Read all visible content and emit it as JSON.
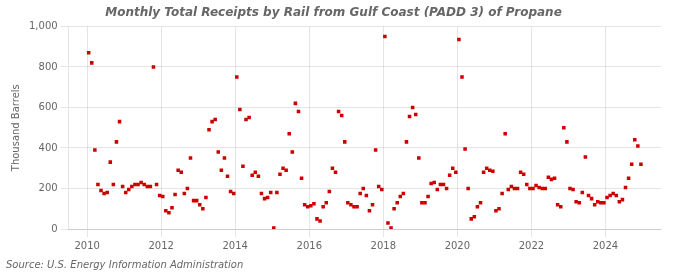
{
  "chart_data": {
    "type": "scatter",
    "title": "Monthly Total Receipts by Rail from Gulf Coast (PADD 3) of Propane",
    "ylabel": "Thousand Barrels",
    "annotations": [
      "Source: U.S. Energy Information Administration"
    ],
    "color": "#cc0000",
    "marker": "square",
    "grid": true,
    "xlim": [
      2009.5,
      2025.5
    ],
    "xticks": [
      2010,
      2012,
      2014,
      2016,
      2018,
      2020,
      2022,
      2024
    ],
    "ylim": [
      0,
      1000
    ],
    "yticks": [
      0,
      200,
      400,
      600,
      800,
      {
        "value": 1000,
        "label": "1,000"
      }
    ],
    "x": [
      2010.0416666666667,
      2010.125,
      2010.2083333333333,
      2010.2916666666667,
      2010.375,
      2010.4583333333333,
      2010.5416666666667,
      2010.625,
      2010.7083333333333,
      2010.7916666666667,
      2010.875,
      2010.9583333333333,
      2011.0416666666667,
      2011.125,
      2011.2083333333333,
      2011.2916666666667,
      2011.375,
      2011.4583333333333,
      2011.5416666666667,
      2011.625,
      2011.7083333333333,
      2011.7916666666667,
      2011.875,
      2011.9583333333333,
      2012.0416666666667,
      2012.125,
      2012.2083333333333,
      2012.2916666666667,
      2012.375,
      2012.4583333333333,
      2012.5416666666667,
      2012.625,
      2012.7083333333333,
      2012.7916666666667,
      2012.875,
      2012.9583333333333,
      2013.0416666666667,
      2013.125,
      2013.2083333333333,
      2013.2916666666667,
      2013.375,
      2013.4583333333333,
      2013.5416666666667,
      2013.625,
      2013.7083333333333,
      2013.7916666666667,
      2013.875,
      2013.9583333333333,
      2014.0416666666667,
      2014.125,
      2014.2083333333333,
      2014.2916666666667,
      2014.375,
      2014.4583333333333,
      2014.5416666666667,
      2014.625,
      2014.7083333333333,
      2014.7916666666667,
      2014.875,
      2014.9583333333333,
      2015.0416666666667,
      2015.125,
      2015.2083333333333,
      2015.2916666666667,
      2015.375,
      2015.4583333333333,
      2015.5416666666667,
      2015.625,
      2015.7083333333333,
      2015.7916666666667,
      2015.875,
      2015.9583333333333,
      2016.0416666666667,
      2016.125,
      2016.2083333333333,
      2016.2916666666667,
      2016.375,
      2016.4583333333333,
      2016.5416666666667,
      2016.625,
      2016.7083333333333,
      2016.7916666666667,
      2016.875,
      2016.9583333333333,
      2017.0416666666667,
      2017.125,
      2017.2083333333333,
      2017.2916666666667,
      2017.375,
      2017.4583333333333,
      2017.5416666666667,
      2017.625,
      2017.7083333333333,
      2017.7916666666667,
      2017.875,
      2017.9583333333333,
      2018.0416666666667,
      2018.125,
      2018.2083333333333,
      2018.2916666666667,
      2018.375,
      2018.4583333333333,
      2018.5416666666667,
      2018.625,
      2018.7083333333333,
      2018.7916666666667,
      2018.875,
      2018.9583333333333,
      2019.0416666666667,
      2019.125,
      2019.2083333333333,
      2019.2916666666667,
      2019.375,
      2019.4583333333333,
      2019.5416666666667,
      2019.625,
      2019.7083333333333,
      2019.7916666666667,
      2019.875,
      2019.9583333333333,
      2020.0416666666667,
      2020.125,
      2020.2083333333333,
      2020.2916666666667,
      2020.375,
      2020.4583333333333,
      2020.5416666666667,
      2020.625,
      2020.7083333333333,
      2020.7916666666667,
      2020.875,
      2020.9583333333333,
      2021.0416666666667,
      2021.125,
      2021.2083333333333,
      2021.2916666666667,
      2021.375,
      2021.4583333333333,
      2021.5416666666667,
      2021.625,
      2021.7083333333333,
      2021.7916666666667,
      2021.875,
      2021.9583333333333,
      2022.0416666666667,
      2022.125,
      2022.2083333333333,
      2022.2916666666667,
      2022.375,
      2022.4583333333333,
      2022.5416666666667,
      2022.625,
      2022.7083333333333,
      2022.7916666666667,
      2022.875,
      2022.9583333333333,
      2023.0416666666667,
      2023.125,
      2023.2083333333333,
      2023.2916666666667,
      2023.375,
      2023.4583333333333,
      2023.5416666666667,
      2023.625,
      2023.7083333333333,
      2023.7916666666667,
      2023.875,
      2023.9583333333333,
      2024.0416666666667,
      2024.125,
      2024.2083333333333,
      2024.2916666666667,
      2024.375,
      2024.4583333333333,
      2024.5416666666667,
      2024.625,
      2024.7083333333333,
      2024.7916666666667,
      2024.875,
      2024.9583333333333
    ],
    "values": [
      870,
      820,
      390,
      220,
      190,
      175,
      180,
      330,
      220,
      430,
      530,
      210,
      180,
      195,
      210,
      220,
      220,
      230,
      220,
      210,
      210,
      800,
      220,
      165,
      160,
      90,
      80,
      105,
      170,
      290,
      280,
      175,
      200,
      350,
      140,
      140,
      120,
      100,
      155,
      490,
      530,
      540,
      380,
      290,
      350,
      260,
      185,
      175,
      750,
      590,
      310,
      540,
      550,
      265,
      280,
      260,
      175,
      150,
      155,
      180,
      5,
      180,
      270,
      300,
      290,
      470,
      380,
      620,
      580,
      250,
      120,
      110,
      115,
      125,
      50,
      40,
      110,
      130,
      185,
      300,
      280,
      580,
      560,
      430,
      130,
      120,
      110,
      110,
      175,
      200,
      165,
      90,
      120,
      390,
      210,
      195,
      950,
      30,
      5,
      100,
      130,
      160,
      175,
      430,
      555,
      600,
      565,
      350,
      130,
      130,
      160,
      225,
      230,
      195,
      220,
      220,
      200,
      265,
      300,
      280,
      935,
      750,
      395,
      200,
      50,
      60,
      110,
      130,
      280,
      300,
      290,
      285,
      90,
      100,
      175,
      470,
      195,
      210,
      200,
      200,
      280,
      270,
      220,
      200,
      200,
      215,
      205,
      200,
      200,
      255,
      245,
      250,
      120,
      110,
      500,
      430,
      200,
      195,
      135,
      130,
      180,
      355,
      165,
      150,
      120,
      135,
      130,
      130,
      155,
      165,
      175,
      165,
      135,
      145,
      205,
      250,
      320,
      440,
      410,
      320
    ]
  }
}
